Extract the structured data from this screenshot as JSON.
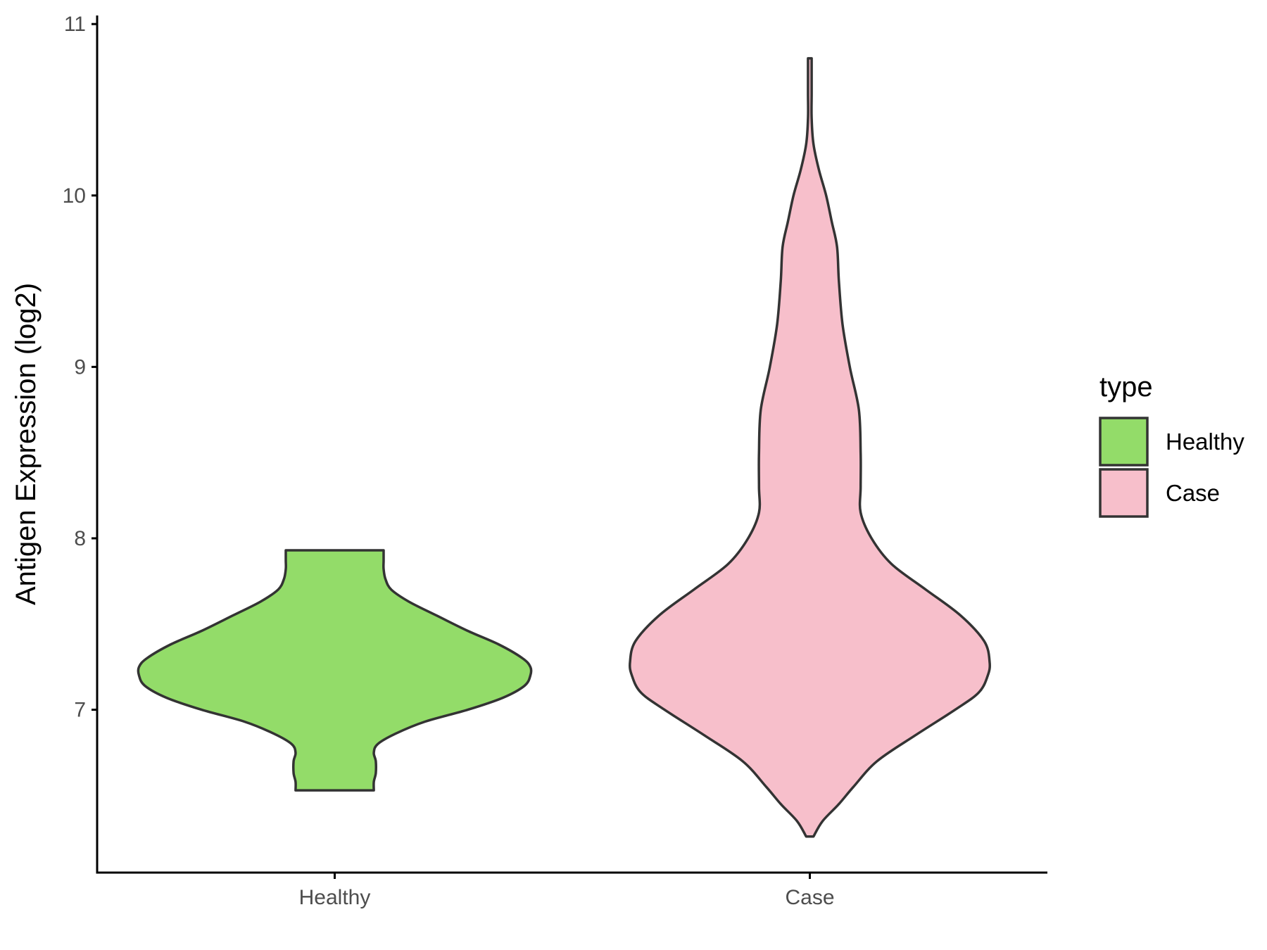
{
  "chart_data": {
    "type": "violin",
    "title": "",
    "xlabel": "",
    "ylabel": "Antigen Expression (log2)",
    "categories": [
      "Healthy",
      "Case"
    ],
    "ylim": [
      6.05,
      11.05
    ],
    "yticks": [
      7,
      8,
      9,
      10,
      11
    ],
    "grid": false,
    "legend": {
      "title": "type",
      "placement": "right",
      "entries": [
        {
          "label": "Healthy",
          "color": "#93DC69"
        },
        {
          "label": "Case",
          "color": "#F7BFCB"
        }
      ]
    },
    "series": [
      {
        "name": "Healthy",
        "color": "#93DC69",
        "min": 6.53,
        "max": 7.93,
        "density_profile": [
          [
            6.53,
            0.2
          ],
          [
            6.58,
            0.2
          ],
          [
            6.63,
            0.21
          ],
          [
            6.7,
            0.21
          ],
          [
            6.75,
            0.2
          ],
          [
            6.8,
            0.22
          ],
          [
            6.86,
            0.31
          ],
          [
            6.93,
            0.46
          ],
          [
            7.0,
            0.68
          ],
          [
            7.07,
            0.86
          ],
          [
            7.14,
            0.97
          ],
          [
            7.2,
            1.0
          ],
          [
            7.25,
            1.0
          ],
          [
            7.3,
            0.96
          ],
          [
            7.38,
            0.84
          ],
          [
            7.46,
            0.68
          ],
          [
            7.55,
            0.52
          ],
          [
            7.63,
            0.38
          ],
          [
            7.7,
            0.29
          ],
          [
            7.76,
            0.26
          ],
          [
            7.82,
            0.25
          ],
          [
            7.87,
            0.25
          ],
          [
            7.93,
            0.25
          ]
        ]
      },
      {
        "name": "Case",
        "color": "#F7BFCB",
        "min": 6.26,
        "max": 10.8,
        "density_profile": [
          [
            6.26,
            0.02
          ],
          [
            6.35,
            0.07
          ],
          [
            6.45,
            0.16
          ],
          [
            6.55,
            0.24
          ],
          [
            6.7,
            0.37
          ],
          [
            6.85,
            0.58
          ],
          [
            7.0,
            0.8
          ],
          [
            7.1,
            0.93
          ],
          [
            7.2,
            0.98
          ],
          [
            7.28,
            0.99
          ],
          [
            7.4,
            0.96
          ],
          [
            7.55,
            0.83
          ],
          [
            7.7,
            0.64
          ],
          [
            7.85,
            0.45
          ],
          [
            8.0,
            0.34
          ],
          [
            8.15,
            0.28
          ],
          [
            8.3,
            0.28
          ],
          [
            8.5,
            0.28
          ],
          [
            8.75,
            0.27
          ],
          [
            9.0,
            0.22
          ],
          [
            9.25,
            0.18
          ],
          [
            9.5,
            0.16
          ],
          [
            9.7,
            0.15
          ],
          [
            9.85,
            0.12
          ],
          [
            10.0,
            0.09
          ],
          [
            10.15,
            0.05
          ],
          [
            10.3,
            0.02
          ],
          [
            10.45,
            0.01
          ],
          [
            10.6,
            0.01
          ],
          [
            10.8,
            0.01
          ]
        ]
      }
    ]
  }
}
